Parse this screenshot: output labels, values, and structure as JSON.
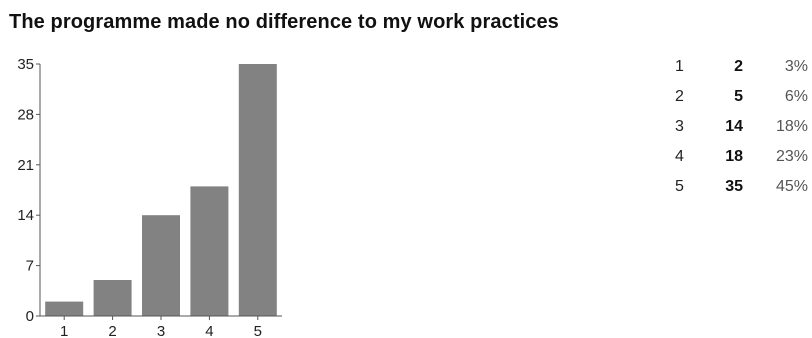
{
  "title": "The programme made no difference to my work practices",
  "colors": {
    "bar": "#828282",
    "axis": "#555555",
    "text": "#111111",
    "percent": "#555555"
  },
  "chart_data": {
    "type": "bar",
    "title": "The programme made no difference to my work practices",
    "categories": [
      "1",
      "2",
      "3",
      "4",
      "5"
    ],
    "values": [
      2,
      5,
      14,
      18,
      35
    ],
    "xlabel": "",
    "ylabel": "",
    "ylim": [
      0,
      35
    ],
    "yticks": [
      "0",
      "7",
      "14",
      "21",
      "28",
      "35"
    ],
    "grid": false,
    "legend": "none"
  },
  "summary": [
    {
      "option": "1",
      "count": "2",
      "percent": "3%"
    },
    {
      "option": "2",
      "count": "5",
      "percent": "6%"
    },
    {
      "option": "3",
      "count": "14",
      "percent": "18%"
    },
    {
      "option": "4",
      "count": "18",
      "percent": "23%"
    },
    {
      "option": "5",
      "count": "35",
      "percent": "45%"
    }
  ]
}
